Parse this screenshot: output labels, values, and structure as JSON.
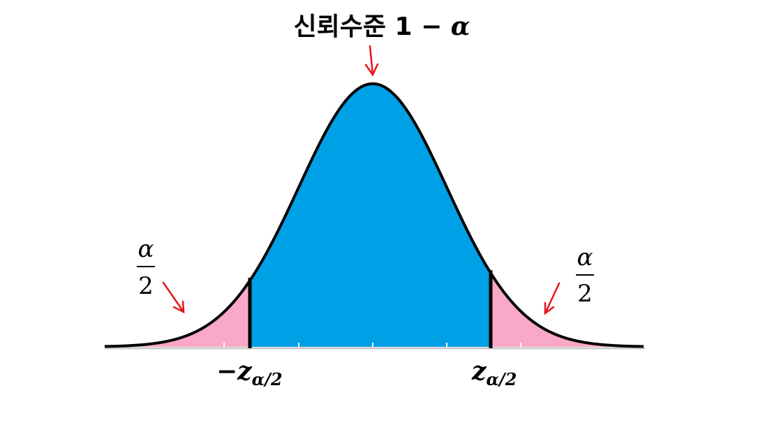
{
  "title": {
    "text": "신뢰수준 1 − ",
    "alpha": "α"
  },
  "left_tail": {
    "numerator": "α",
    "denominator": "2"
  },
  "right_tail": {
    "numerator": "α",
    "denominator": "2"
  },
  "left_critical": {
    "main": "−z",
    "subscript": "α/2"
  },
  "right_critical": {
    "main": "z",
    "subscript": "α/2"
  },
  "colors": {
    "center_fill": "#00a0e6",
    "tail_fill": "#f9a8c8",
    "curve": "#000000",
    "arrow": "#e8141c",
    "axis": "#cccccc"
  }
}
